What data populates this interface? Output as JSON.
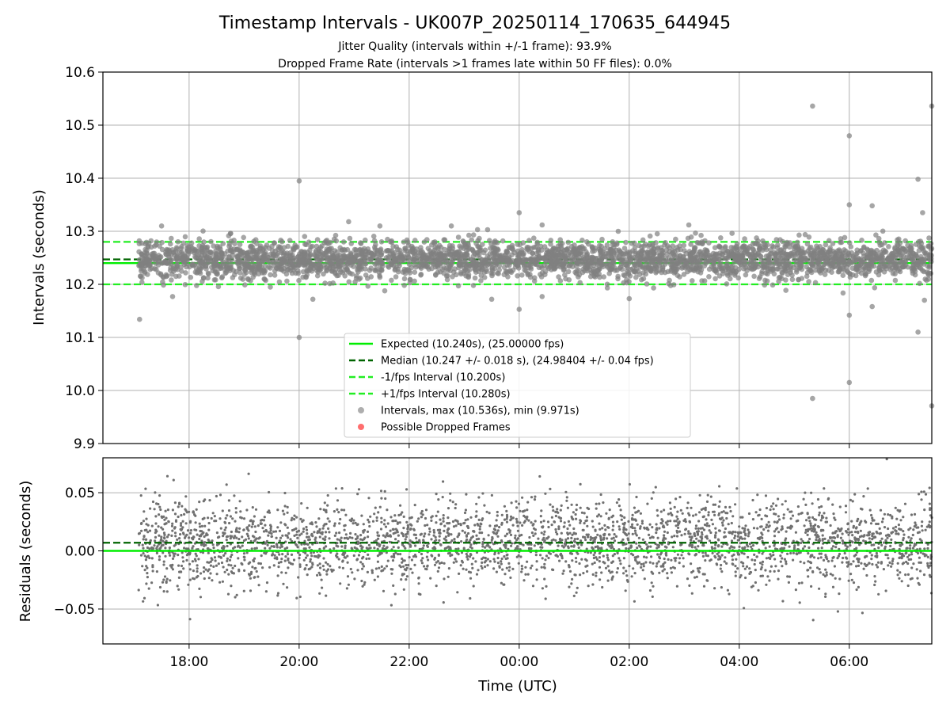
{
  "title": "Timestamp Intervals - UK007P_20250114_170635_644945",
  "subtitle1": "Jitter Quality (intervals within +/-1 frame): 93.9%",
  "subtitle2": "Dropped Frame Rate (intervals >1 frames late within 50 FF files): 0.0%",
  "colors": {
    "expected": "#00ee00",
    "median": "#006400",
    "interval_band": "#22ee22",
    "points": "#808080",
    "dropped": "#ff5555",
    "grid": "#b0b0b0"
  },
  "legend": {
    "placement": "lower-center",
    "items": [
      {
        "label": "Expected (10.240s), (25.00000 fps)",
        "style": "solid-line",
        "color": "#00ee00"
      },
      {
        "label": "Median (10.247 +/- 0.018 s), (24.98404 +/- 0.04 fps)",
        "style": "dashed-line",
        "color": "#006400"
      },
      {
        "label": "-1/fps Interval (10.200s)",
        "style": "dashed-line",
        "color": "#22ee22"
      },
      {
        "label": "+1/fps Interval (10.280s)",
        "style": "dashed-line",
        "color": "#22ee22"
      },
      {
        "label": "Intervals, max (10.536s), min (9.971s)",
        "style": "marker",
        "color": "#a0a0a0"
      },
      {
        "label": "Possible Dropped Frames",
        "style": "marker",
        "color": "#ff5555"
      }
    ]
  },
  "chart_data": [
    {
      "type": "scatter",
      "panel": "intervals",
      "ylabel": "Intervals (seconds)",
      "xlabel": "",
      "ylim": [
        9.9,
        10.6
      ],
      "yticks": [
        "10.6",
        "10.5",
        "10.4",
        "10.3",
        "10.2",
        "10.1",
        "10.0",
        "9.9"
      ],
      "xlim": [
        "16:26",
        "07:30"
      ],
      "xticks": [
        "18:00",
        "20:00",
        "22:00",
        "00:00",
        "02:00",
        "04:00",
        "06:00"
      ],
      "grid": true,
      "reference_lines": [
        {
          "name": "Expected",
          "y": 10.24
        },
        {
          "name": "Median",
          "y": 10.247
        },
        {
          "name": "-1/fps Interval",
          "y": 10.2
        },
        {
          "name": "+1/fps Interval",
          "y": 10.28
        }
      ],
      "bulk": {
        "x_range": [
          "17:05",
          "07:30"
        ],
        "y_center": 10.247,
        "y_std": 0.018
      },
      "outliers": [
        {
          "x": "17:06",
          "y": 10.134
        },
        {
          "x": "17:30",
          "y": 10.31
        },
        {
          "x": "17:42",
          "y": 10.177
        },
        {
          "x": "20:00",
          "y": 10.395
        },
        {
          "x": "20:00",
          "y": 10.1
        },
        {
          "x": "20:15",
          "y": 10.172
        },
        {
          "x": "20:54",
          "y": 10.318
        },
        {
          "x": "22:46",
          "y": 10.31
        },
        {
          "x": "23:30",
          "y": 10.172
        },
        {
          "x": "00:00",
          "y": 10.335
        },
        {
          "x": "00:00",
          "y": 10.153
        },
        {
          "x": "00:25",
          "y": 10.312
        },
        {
          "x": "00:25",
          "y": 10.177
        },
        {
          "x": "01:48",
          "y": 10.3
        },
        {
          "x": "02:00",
          "y": 10.173
        },
        {
          "x": "03:05",
          "y": 10.312
        },
        {
          "x": "05:20",
          "y": 10.536
        },
        {
          "x": "05:20",
          "y": 9.985
        },
        {
          "x": "06:00",
          "y": 10.48
        },
        {
          "x": "06:00",
          "y": 10.35
        },
        {
          "x": "06:00",
          "y": 10.142
        },
        {
          "x": "06:00",
          "y": 10.015
        },
        {
          "x": "06:25",
          "y": 10.348
        },
        {
          "x": "06:25",
          "y": 10.158
        },
        {
          "x": "07:15",
          "y": 10.398
        },
        {
          "x": "07:15",
          "y": 10.11
        },
        {
          "x": "07:20",
          "y": 10.335
        },
        {
          "x": "07:22",
          "y": 10.17
        },
        {
          "x": "07:30",
          "y": 10.536
        },
        {
          "x": "07:30",
          "y": 9.971
        }
      ],
      "dropped_frames": []
    },
    {
      "type": "scatter",
      "panel": "residuals",
      "ylabel": "Residuals (seconds)",
      "xlabel": "Time (UTC)",
      "ylim": [
        -0.08,
        0.08
      ],
      "yticks": [
        "0.05",
        "0.00",
        "−0.05"
      ],
      "xlim": [
        "16:26",
        "07:30"
      ],
      "xticks": [
        "18:00",
        "20:00",
        "22:00",
        "00:00",
        "02:00",
        "04:00",
        "06:00"
      ],
      "grid": true,
      "reference_lines": [
        {
          "name": "Expected",
          "y": 0.0
        },
        {
          "name": "Median",
          "y": 0.007
        }
      ],
      "bulk": {
        "x_range": [
          "17:05",
          "07:30"
        ],
        "y_center": 0.007,
        "y_std": 0.018
      }
    }
  ]
}
